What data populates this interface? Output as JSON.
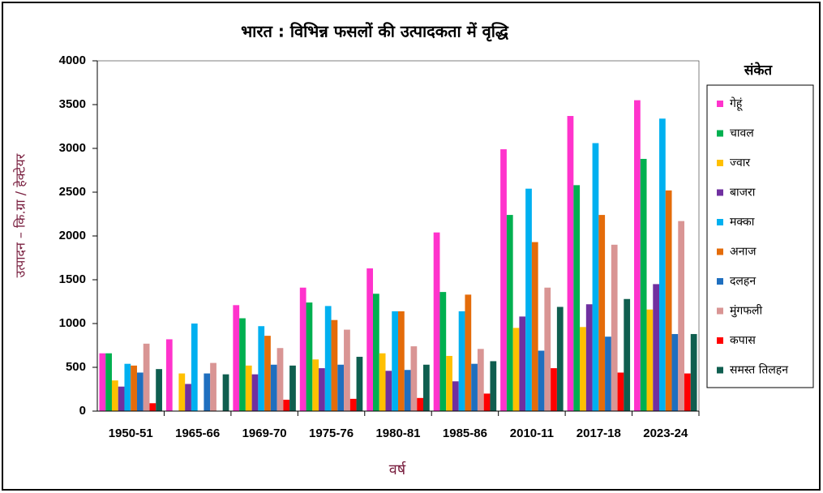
{
  "chart_data": {
    "type": "bar",
    "title": "भारत : विभिन्न फसलों की उत्पादकता में वृद्धि",
    "y_label": "उत्पादन – कि.ग्रा / हेक्टेयर",
    "x_label": "वर्ष",
    "legend_title": "संकेत",
    "legend_position": "right",
    "categories": [
      "1950-51",
      "1965-66",
      "1969-70",
      "1975-76",
      "1980-81",
      "1985-86",
      "2010-11",
      "2017-18",
      "2023-24"
    ],
    "ylim": [
      0,
      4000
    ],
    "yticks": [
      0,
      500,
      1000,
      1500,
      2000,
      2500,
      3000,
      3500,
      4000
    ],
    "series": [
      {
        "name": "गेहूं",
        "color": "#ff33cc",
        "values": [
          660,
          820,
          1210,
          1410,
          1630,
          2040,
          2990,
          3370,
          3550
        ]
      },
      {
        "name": "चावल",
        "color": "#00b050",
        "values": [
          660,
          null,
          1060,
          1240,
          1340,
          1360,
          2240,
          2580,
          2880
        ]
      },
      {
        "name": "ज्वार",
        "color": "#ffc000",
        "values": [
          350,
          430,
          520,
          590,
          660,
          630,
          950,
          960,
          1160
        ]
      },
      {
        "name": "बाजरा",
        "color": "#7030a0",
        "values": [
          280,
          310,
          420,
          490,
          460,
          340,
          1080,
          1220,
          1450
        ]
      },
      {
        "name": "मक्का",
        "color": "#00b0f0",
        "values": [
          540,
          1000,
          970,
          1200,
          1140,
          1140,
          2540,
          3060,
          3340
        ]
      },
      {
        "name": "अनाज",
        "color": "#e46c0a",
        "values": [
          520,
          null,
          860,
          1040,
          1140,
          1330,
          1930,
          2240,
          2520
        ]
      },
      {
        "name": "दलहन",
        "color": "#1f6fbf",
        "values": [
          440,
          430,
          530,
          530,
          470,
          540,
          690,
          850,
          880
        ]
      },
      {
        "name": "मुंगफली",
        "color": "#d99594",
        "values": [
          770,
          550,
          720,
          930,
          740,
          710,
          1410,
          1900,
          2170
        ]
      },
      {
        "name": "कपास",
        "color": "#ff0000",
        "values": [
          90,
          null,
          130,
          140,
          150,
          200,
          490,
          440,
          430
        ]
      },
      {
        "name": "समस्त तिलहन",
        "color": "#0f5e4f",
        "values": [
          480,
          420,
          520,
          620,
          530,
          570,
          1190,
          1280,
          880
        ]
      }
    ]
  }
}
